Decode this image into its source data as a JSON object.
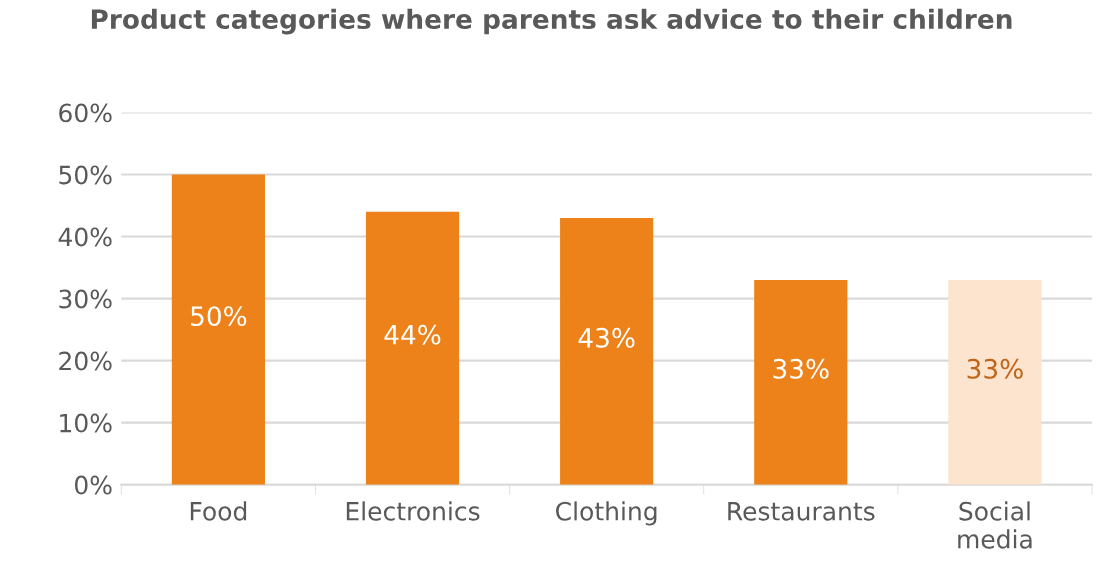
{
  "chart_data": {
    "type": "bar",
    "title": "Product categories where parents ask advice to their children",
    "categories": [
      "Food",
      "Electronics",
      "Clothing",
      "Restaurants",
      "Social\nmedia"
    ],
    "values": [
      50,
      44,
      43,
      33,
      33
    ],
    "colors": [
      "#ec8219",
      "#ec8219",
      "#ec8219",
      "#ec8219",
      "#fce4cf"
    ],
    "value_labels": [
      "50%",
      "44%",
      "43%",
      "33%",
      "33%"
    ],
    "ylim": [
      0,
      60
    ],
    "yticks": [
      {
        "value": 0,
        "label": "0%"
      },
      {
        "value": 10,
        "label": "10%"
      },
      {
        "value": 20,
        "label": "20%"
      },
      {
        "value": 30,
        "label": "30%"
      },
      {
        "value": 40,
        "label": "40%"
      },
      {
        "value": 50,
        "label": "50%"
      },
      {
        "value": 60,
        "label": "60%"
      }
    ],
    "grid": "y",
    "legend": false
  }
}
